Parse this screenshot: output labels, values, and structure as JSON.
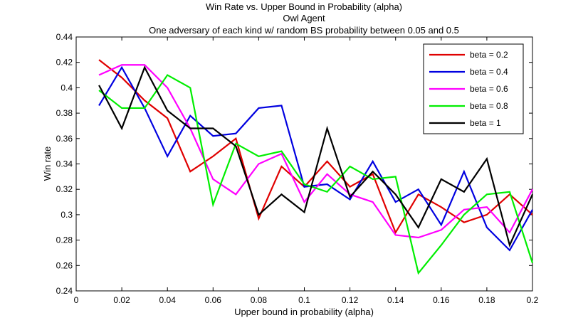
{
  "chart_data": {
    "type": "line",
    "title": "Win Rate vs. Upper Bound in Probability (alpha)",
    "subtitle": "Owl Agent",
    "subtitle2": "One adversary of each kind w/ random BS probability between 0.05 and 0.5",
    "xlabel": "Upper bound in probability (alpha)",
    "ylabel": "Win rate",
    "xlim": [
      0,
      0.2
    ],
    "ylim": [
      0.24,
      0.44
    ],
    "xticks": [
      "0",
      "0.02",
      "0.04",
      "0.06",
      "0.08",
      "0.1",
      "0.12",
      "0.14",
      "0.16",
      "0.18",
      "0.2"
    ],
    "yticks": [
      "0.24",
      "0.26",
      "0.28",
      "0.3",
      "0.32",
      "0.34",
      "0.36",
      "0.38",
      "0.4",
      "0.42",
      "0.44"
    ],
    "grid": false,
    "legend_position": "top-right",
    "x": [
      0.01,
      0.02,
      0.03,
      0.04,
      0.05,
      0.06,
      0.07,
      0.08,
      0.09,
      0.1,
      0.11,
      0.12,
      0.13,
      0.14,
      0.15,
      0.16,
      0.17,
      0.18,
      0.19,
      0.2
    ],
    "series": [
      {
        "name": "beta = 0.2",
        "color": "#e00000",
        "values": [
          0.422,
          0.408,
          0.39,
          0.376,
          0.334,
          0.346,
          0.36,
          0.297,
          0.338,
          0.322,
          0.342,
          0.322,
          0.332,
          0.286,
          0.316,
          0.306,
          0.294,
          0.3,
          0.316,
          0.3
        ]
      },
      {
        "name": "beta = 0.4",
        "color": "#0000e0",
        "values": [
          0.386,
          0.416,
          0.384,
          0.346,
          0.378,
          0.362,
          0.364,
          0.384,
          0.386,
          0.322,
          0.324,
          0.312,
          0.342,
          0.31,
          0.32,
          0.292,
          0.334,
          0.29,
          0.272,
          0.304
        ]
      },
      {
        "name": "beta = 0.6",
        "color": "#ff00ff",
        "values": [
          0.41,
          0.418,
          0.418,
          0.4,
          0.368,
          0.328,
          0.316,
          0.34,
          0.348,
          0.31,
          0.332,
          0.316,
          0.31,
          0.284,
          0.282,
          0.288,
          0.304,
          0.306,
          0.286,
          0.32
        ]
      },
      {
        "name": "beta = 0.8",
        "color": "#00ee00",
        "values": [
          0.398,
          0.384,
          0.384,
          0.41,
          0.4,
          0.308,
          0.356,
          0.346,
          0.35,
          0.324,
          0.318,
          0.338,
          0.328,
          0.33,
          0.254,
          0.276,
          0.3,
          0.316,
          0.318,
          0.262
        ]
      },
      {
        "name": "beta = 1",
        "color": "#000000",
        "values": [
          0.402,
          0.368,
          0.416,
          0.382,
          0.368,
          0.368,
          0.354,
          0.3,
          0.316,
          0.302,
          0.368,
          0.314,
          0.334,
          0.316,
          0.29,
          0.328,
          0.318,
          0.344,
          0.276,
          0.316
        ]
      }
    ]
  }
}
